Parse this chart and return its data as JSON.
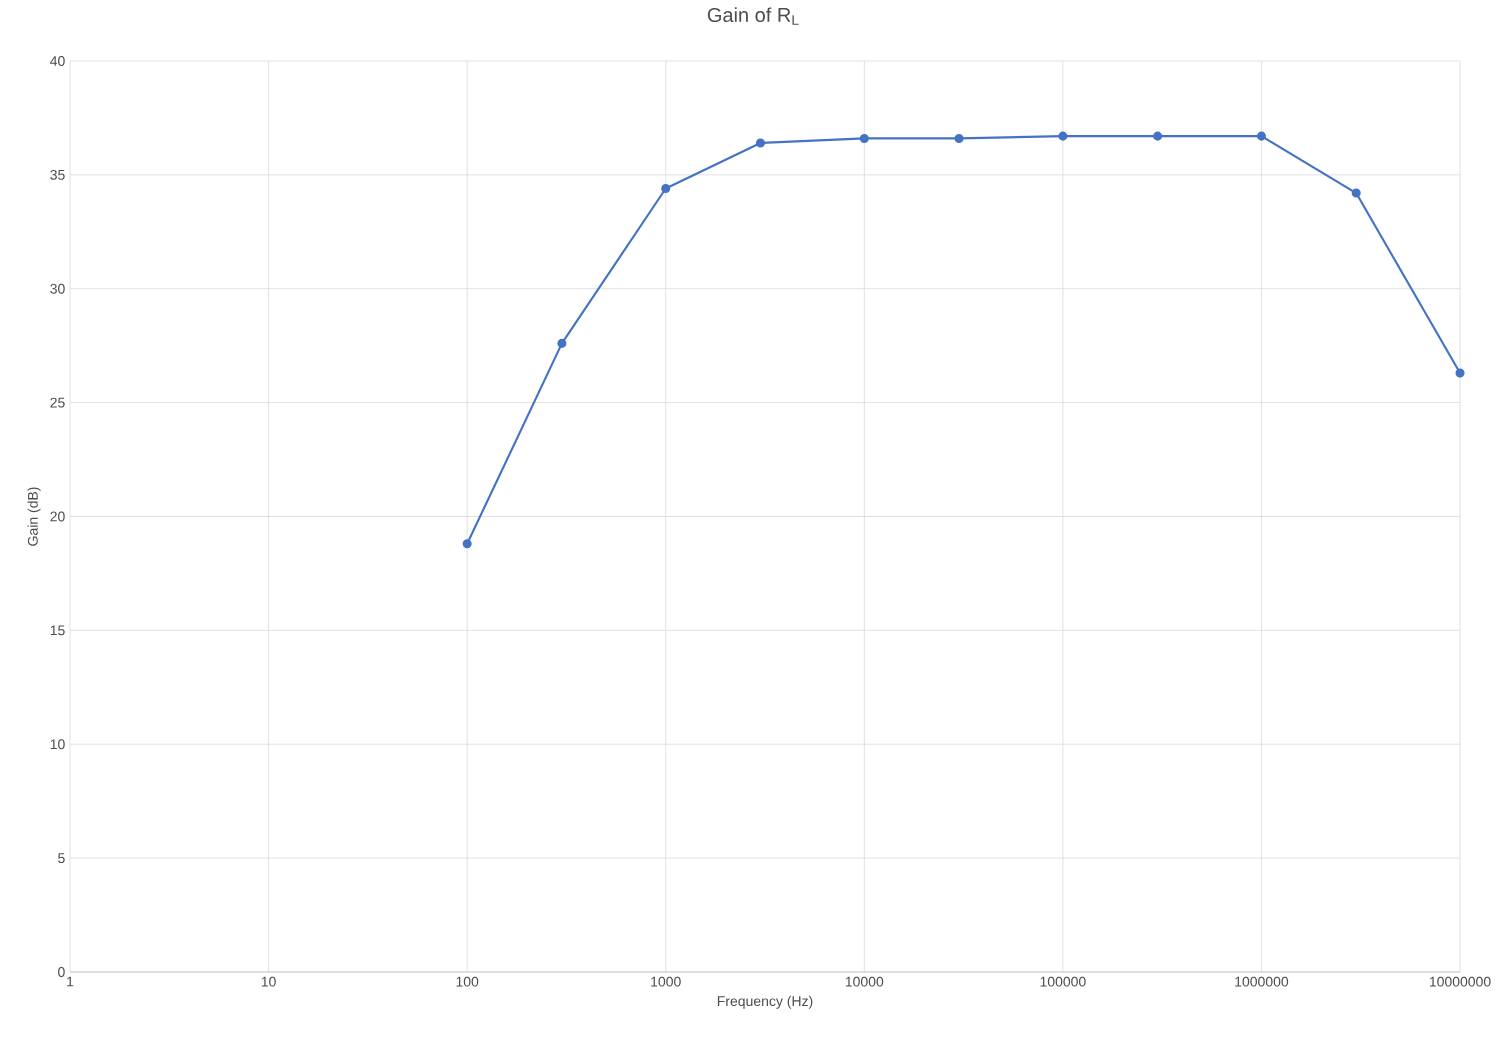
{
  "chart_data": {
    "type": "line",
    "title": "Gain of R$_{L}$",
    "xlabel": "Frequency (Hz)",
    "ylabel": "Gain (dB)",
    "x": [
      100,
      300,
      1000,
      3000,
      10000,
      30000,
      100000,
      300000,
      1000000,
      3000000,
      10000000
    ],
    "values": [
      18.8,
      27.6,
      34.4,
      36.4,
      36.6,
      36.6,
      36.7,
      36.7,
      36.7,
      34.2,
      26.3
    ],
    "color": "#4472c4",
    "marker": "circle",
    "log": "x",
    "grid": true,
    "xlim": [
      1,
      10000000
    ],
    "xticks": [
      1,
      10,
      100,
      1000,
      10000,
      100000,
      1000000,
      10000000
    ],
    "ylim": [
      0,
      40
    ],
    "yticks": [
      0,
      5,
      10,
      15,
      20,
      25,
      30,
      35,
      40
    ]
  }
}
